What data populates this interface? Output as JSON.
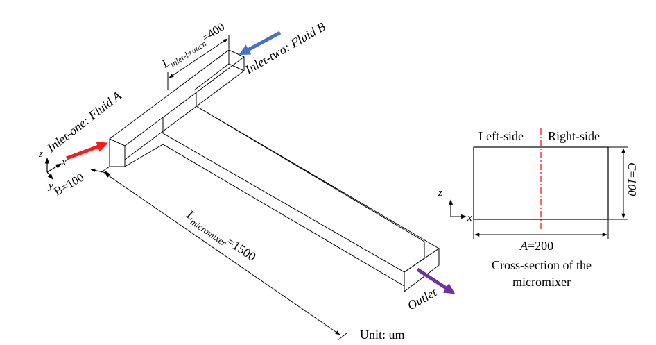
{
  "colors": {
    "inlet_one_arrow": "#ff1a1a",
    "inlet_two_arrow": "#4472c4",
    "outlet_arrow": "#7030a0",
    "centerline": "#ff0000",
    "line": "#000000"
  },
  "labels": {
    "inlet_one": "Inlet-one: Fluid A",
    "inlet_two": "Inlet-two: Fluid B",
    "outlet": "Outlet",
    "unit": "Unit: um"
  },
  "dimensions": {
    "inlet_branch": {
      "symbol": "L",
      "subscript": "inlet-branch",
      "value": "=400"
    },
    "micromixer": {
      "symbol": "L",
      "subscript": "micromixer",
      "value": "=1500"
    },
    "width_b": "B=100"
  },
  "axes": {
    "x": "x",
    "y": "y",
    "z": "z"
  },
  "cross_section": {
    "left_side": "Left-side",
    "right_side": "Right-side",
    "height": "C=100",
    "width": {
      "symbol": "A",
      "value": "=200"
    },
    "caption_line1": "Cross-section of the",
    "caption_line2": "micromixer"
  }
}
